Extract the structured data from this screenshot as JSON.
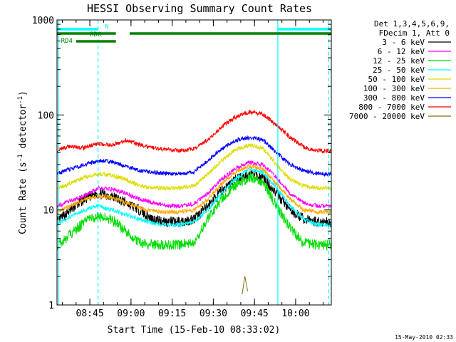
{
  "chart_data": {
    "type": "line",
    "title": "HESSI Observing Summary Count Rates",
    "xlabel": "Start Time (15-Feb-10 08:33:02)",
    "ylabel_prefix": "Count Rate (s",
    "ylabel_mid": " detector",
    "ylabel_suffix": ")",
    "ylabel_exp": "-1",
    "yscale": "log",
    "ylim": [
      1,
      1000
    ],
    "xlim": [
      "08:33:02",
      "10:13:00"
    ],
    "x_ticks": [
      "08:45",
      "09:00",
      "09:15",
      "09:30",
      "09:45",
      "10:00"
    ],
    "y_ticks": [
      "1",
      "10",
      "100",
      "1000"
    ],
    "legend_header": [
      "Det 1,3,4,5,6,9,",
      "FDecim 1, Att 0"
    ],
    "legend_position": "right",
    "series": [
      {
        "name": "3 - 6 keV",
        "color": "#000000",
        "x": [
          "08:33",
          "08:38",
          "08:43",
          "08:48",
          "08:53",
          "08:58",
          "09:03",
          "09:08",
          "09:13",
          "09:18",
          "09:23",
          "09:28",
          "09:33",
          "09:38",
          "09:43",
          "09:48",
          "09:53",
          "09:58",
          "10:03",
          "10:08",
          "10:13"
        ],
        "values": [
          7.5,
          10,
          13,
          15,
          14,
          12,
          10,
          8,
          7.5,
          7.5,
          8,
          11,
          16,
          21,
          24,
          22,
          15,
          10,
          8,
          7.5,
          7.5
        ]
      },
      {
        "name": "6 - 12 keV",
        "color": "#ff00ff",
        "x": [
          "08:33",
          "08:38",
          "08:43",
          "08:48",
          "08:53",
          "08:58",
          "09:03",
          "09:08",
          "09:13",
          "09:18",
          "09:23",
          "09:28",
          "09:33",
          "09:38",
          "09:43",
          "09:48",
          "09:53",
          "09:58",
          "10:03",
          "10:08",
          "10:13"
        ],
        "values": [
          11,
          12.5,
          14,
          17,
          16.5,
          15,
          13,
          12,
          11,
          11,
          11.5,
          15,
          21,
          27,
          32,
          30,
          22,
          15,
          12,
          11,
          11
        ]
      },
      {
        "name": "12 - 25 keV",
        "color": "#00dd00",
        "x": [
          "08:33",
          "08:38",
          "08:43",
          "08:48",
          "08:53",
          "08:58",
          "09:03",
          "09:08",
          "09:13",
          "09:18",
          "09:23",
          "09:28",
          "09:33",
          "09:38",
          "09:43",
          "09:48",
          "09:53",
          "09:58",
          "10:03",
          "10:08",
          "10:13"
        ],
        "values": [
          4.3,
          5.5,
          7.5,
          8.5,
          8,
          6,
          4.5,
          4.3,
          4.3,
          4.3,
          4.6,
          8,
          13,
          18,
          22,
          20,
          11,
          6.5,
          4.5,
          4.3,
          4.3
        ]
      },
      {
        "name": "25 - 50 keV",
        "color": "#00ffff",
        "x": [
          "08:33",
          "08:38",
          "08:43",
          "08:48",
          "08:53",
          "08:58",
          "09:03",
          "09:08",
          "09:13",
          "09:18",
          "09:23",
          "09:28",
          "09:33",
          "09:38",
          "09:43",
          "09:48",
          "09:53",
          "09:58",
          "10:03",
          "10:08",
          "10:13"
        ],
        "values": [
          7,
          8.5,
          10,
          11,
          10,
          9,
          8,
          7.2,
          7,
          7,
          7.5,
          10,
          15,
          21,
          27,
          25,
          17,
          11,
          8,
          7,
          7
        ]
      },
      {
        "name": "50 - 100 keV",
        "color": "#dddd00",
        "x": [
          "08:33",
          "08:38",
          "08:43",
          "08:48",
          "08:53",
          "08:58",
          "09:03",
          "09:08",
          "09:13",
          "09:18",
          "09:23",
          "09:28",
          "09:33",
          "09:38",
          "09:43",
          "09:48",
          "09:53",
          "09:58",
          "10:03",
          "10:08",
          "10:13"
        ],
        "values": [
          17,
          19,
          22,
          24,
          23,
          21,
          18,
          17,
          17,
          17,
          18,
          24,
          33,
          43,
          48,
          45,
          30,
          21,
          18,
          17,
          17
        ]
      },
      {
        "name": "100 - 300 keV",
        "color": "#ffaa00",
        "x": [
          "08:33",
          "08:38",
          "08:43",
          "08:48",
          "08:53",
          "08:58",
          "09:03",
          "09:08",
          "09:13",
          "09:18",
          "09:23",
          "09:28",
          "09:33",
          "09:38",
          "09:43",
          "09:48",
          "09:53",
          "09:58",
          "10:03",
          "10:08",
          "10:13"
        ],
        "values": [
          9.5,
          11,
          13,
          14,
          13.5,
          12,
          10.5,
          9.8,
          9.5,
          9.5,
          10,
          13,
          19,
          25,
          29,
          27,
          19,
          13,
          10,
          9.5,
          9.5
        ]
      },
      {
        "name": "300 - 800 keV",
        "color": "#0000ff",
        "x": [
          "08:33",
          "08:38",
          "08:43",
          "08:48",
          "08:53",
          "08:58",
          "09:03",
          "09:08",
          "09:13",
          "09:18",
          "09:23",
          "09:28",
          "09:33",
          "09:38",
          "09:43",
          "09:48",
          "09:53",
          "09:58",
          "10:03",
          "10:08",
          "10:13"
        ],
        "values": [
          24,
          27,
          30,
          33,
          32,
          29,
          26,
          25,
          24,
          24,
          25,
          33,
          44,
          54,
          58,
          55,
          40,
          30,
          26,
          24,
          24
        ]
      },
      {
        "name": "800 - 7000 keV",
        "color": "#ff0000",
        "x": [
          "08:33",
          "08:38",
          "08:43",
          "08:48",
          "08:53",
          "08:58",
          "09:03",
          "09:08",
          "09:13",
          "09:18",
          "09:23",
          "09:28",
          "09:33",
          "09:38",
          "09:43",
          "09:48",
          "09:53",
          "09:58",
          "10:03",
          "10:08",
          "10:13"
        ],
        "values": [
          42,
          47,
          45,
          50,
          48,
          54,
          49,
          45,
          43,
          42,
          44,
          55,
          75,
          95,
          108,
          102,
          78,
          58,
          46,
          42,
          42
        ]
      },
      {
        "name": "7000 - 20000 keV",
        "color": "#807000",
        "x": [
          "09:40:30",
          "09:41:30",
          "09:42:30"
        ],
        "values": [
          1.3,
          2,
          1.4
        ]
      }
    ],
    "annotations": {
      "n_label": "N",
      "rd0_label": "RD0",
      "rd4_label": "RD4",
      "timestamp": "15-May-2010 02:33"
    },
    "colors": {
      "orbit_lines": "#00ffff",
      "flag_bars": "#008000",
      "night_bar": "#00ffff"
    }
  }
}
